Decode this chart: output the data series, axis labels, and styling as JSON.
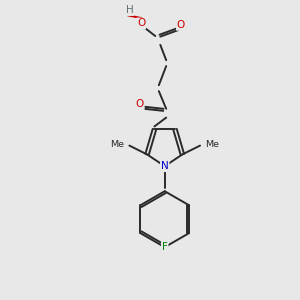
{
  "bg_color": "#e8e8e8",
  "bond_color": "#2a2a2a",
  "atom_colors": {
    "O": "#cc0000",
    "N": "#0000cc",
    "F": "#008000",
    "H": "#607070",
    "C": "#2a2a2a"
  },
  "lw": 1.4,
  "fs": 7.5,
  "fs_small": 6.8
}
